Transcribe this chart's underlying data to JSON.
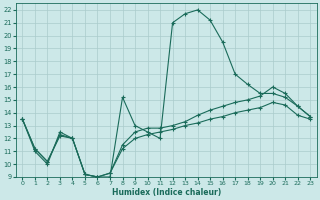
{
  "bg_color": "#cce8e8",
  "grid_color": "#aacccc",
  "line_color": "#1a6b5a",
  "xlabel": "Humidex (Indice chaleur)",
  "xlim": [
    -0.5,
    23.5
  ],
  "ylim": [
    9,
    22.5
  ],
  "xticks": [
    0,
    1,
    2,
    3,
    4,
    5,
    6,
    7,
    8,
    9,
    10,
    11,
    12,
    13,
    14,
    15,
    16,
    17,
    18,
    19,
    20,
    21,
    22,
    23
  ],
  "yticks": [
    9,
    10,
    11,
    12,
    13,
    14,
    15,
    16,
    17,
    18,
    19,
    20,
    21,
    22
  ],
  "curve1_x": [
    0,
    1,
    2,
    3,
    4,
    5,
    6,
    7,
    8,
    9,
    10,
    11,
    12,
    13,
    14,
    15,
    16,
    17,
    18,
    19,
    20,
    21,
    22,
    23
  ],
  "curve1_y": [
    13.5,
    11.0,
    10.0,
    12.5,
    12.0,
    9.2,
    9.0,
    9.0,
    15.2,
    13.0,
    12.5,
    12.0,
    21.0,
    21.7,
    22.0,
    21.2,
    19.5,
    17.0,
    16.2,
    15.5,
    15.5,
    15.2,
    14.5,
    13.7
  ],
  "curve2_x": [
    0,
    1,
    2,
    3,
    4,
    5,
    6,
    7,
    8,
    9,
    10,
    11,
    12,
    13,
    14,
    15,
    16,
    17,
    18,
    19,
    20,
    21,
    22,
    23
  ],
  "curve2_y": [
    13.5,
    11.2,
    10.2,
    12.3,
    12.0,
    9.2,
    9.0,
    9.3,
    11.5,
    12.5,
    12.8,
    12.8,
    13.0,
    13.3,
    13.8,
    14.2,
    14.5,
    14.8,
    15.0,
    15.3,
    16.0,
    15.5,
    14.5,
    13.7
  ],
  "curve3_x": [
    0,
    1,
    2,
    3,
    4,
    5,
    6,
    7,
    8,
    9,
    10,
    11,
    12,
    13,
    14,
    15,
    16,
    17,
    18,
    19,
    20,
    21,
    22,
    23
  ],
  "curve3_y": [
    13.5,
    11.2,
    10.2,
    12.2,
    12.0,
    9.2,
    9.0,
    9.3,
    11.2,
    12.0,
    12.3,
    12.5,
    12.7,
    13.0,
    13.2,
    13.5,
    13.7,
    14.0,
    14.2,
    14.4,
    14.8,
    14.6,
    13.8,
    13.5
  ]
}
